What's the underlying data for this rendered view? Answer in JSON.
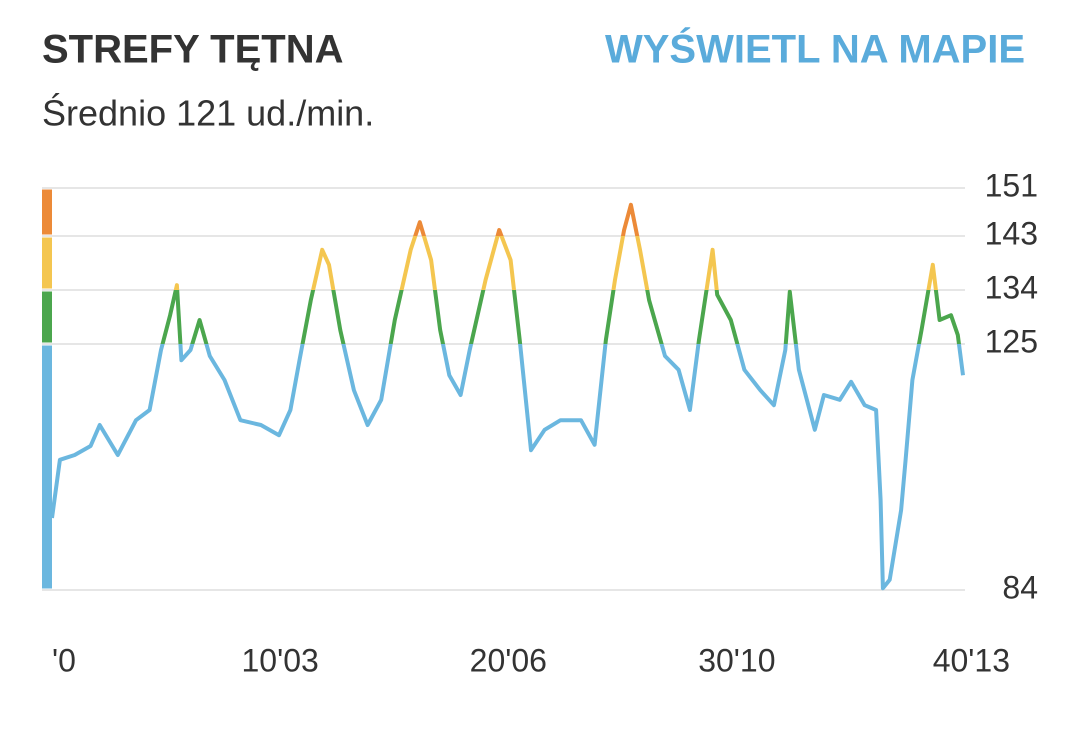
{
  "header": {
    "title": "STREFY TĘTNA",
    "link": "WYŚWIETL NA MAPIE",
    "subtitle": "Średnio 121 ud./min."
  },
  "chart_data": {
    "type": "line",
    "x": [
      0,
      0.35,
      1.0,
      1.7,
      2.1,
      2.9,
      3.7,
      4.3,
      4.8,
      5.2,
      5.5,
      5.7,
      6.1,
      6.5,
      6.95,
      7.6,
      8.3,
      9.2,
      10.0,
      10.5,
      10.9,
      11.4,
      11.9,
      12.2,
      12.7,
      13.3,
      13.9,
      14.5,
      15.1,
      15.8,
      16.2,
      16.7,
      17.1,
      17.5,
      18.0,
      18.4,
      19.1,
      19.7,
      20.2,
      20.6,
      21.1,
      21.7,
      22.4,
      23.3,
      23.9,
      24.4,
      24.8,
      25.2,
      25.5,
      25.9,
      26.3,
      27.0,
      27.6,
      28.1,
      28.5,
      29.1,
      29.3,
      29.9,
      30.5,
      31.2,
      31.8,
      32.3,
      32.5,
      32.9,
      33.6,
      34.0,
      34.7,
      35.2,
      35.8,
      36.3,
      36.5,
      36.6,
      36.9,
      37.4,
      37.6,
      37.9,
      38.3,
      38.8,
      39.1,
      39.6,
      39.9,
      40.13
    ],
    "values": [
      96,
      105.7,
      106.5,
      108,
      111.5,
      106.5,
      112.3,
      114,
      124,
      129.8,
      134.8,
      122.3,
      124,
      129,
      123,
      119,
      112.3,
      111.5,
      109.8,
      114,
      122.3,
      132.3,
      140.7,
      138.2,
      127.3,
      117.3,
      111.5,
      115.7,
      129,
      140.7,
      145.3,
      139,
      127.3,
      119.8,
      116.5,
      124,
      135.7,
      144,
      139,
      125.7,
      107.3,
      110.7,
      112.3,
      112.3,
      108.2,
      125.7,
      135.7,
      144,
      148.2,
      140.7,
      132.3,
      123,
      120.7,
      114,
      125.7,
      140.7,
      133.2,
      129,
      120.7,
      117.3,
      114.8,
      124,
      133.7,
      120.7,
      110.7,
      116.5,
      115.7,
      118.7,
      114.8,
      114,
      99,
      84.3,
      85.7,
      97.3,
      105.7,
      119,
      127.3,
      138.2,
      129,
      129.8,
      126.5,
      119.8
    ],
    "xlim": [
      0,
      40.2167
    ],
    "xticks": [
      {
        "value": 0,
        "label": "'0"
      },
      {
        "value": 10.05,
        "label": "10'03"
      },
      {
        "value": 20.1,
        "label": "20'06"
      },
      {
        "value": 30.1667,
        "label": "30'10"
      },
      {
        "value": 40.2167,
        "label": "40'13"
      }
    ],
    "ylim": [
      84,
      151
    ],
    "yticks": [
      151,
      143,
      134,
      125,
      84
    ],
    "grid": true,
    "zones": [
      {
        "from": 84,
        "to": 125,
        "color": "#6bb7df"
      },
      {
        "from": 125,
        "to": 134,
        "color": "#4ba64d"
      },
      {
        "from": 134,
        "to": 143,
        "color": "#f4c650"
      },
      {
        "from": 143,
        "to": 151,
        "color": "#ec8a38"
      }
    ]
  }
}
